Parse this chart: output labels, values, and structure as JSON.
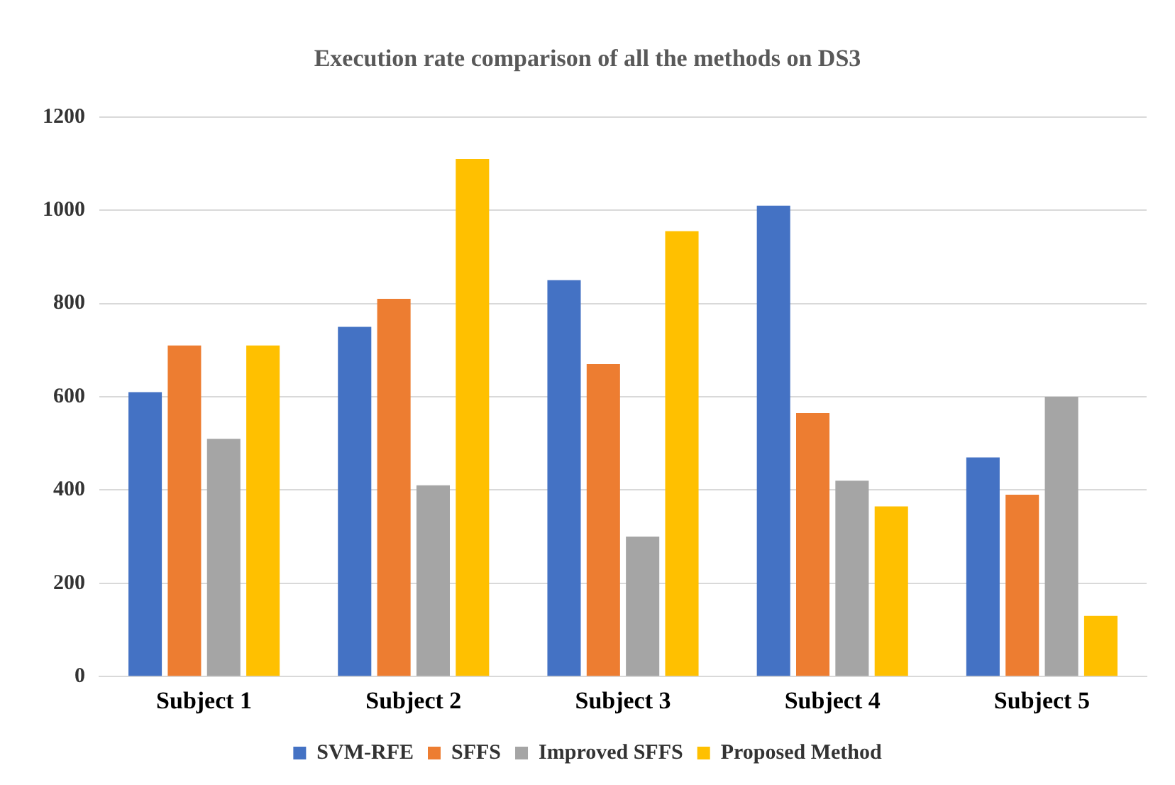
{
  "chart_data": {
    "type": "bar",
    "title": "Execution rate comparison of all the methods on DS3",
    "categories": [
      "Subject 1",
      "Subject 2",
      "Subject 3",
      "Subject 4",
      "Subject 5"
    ],
    "series": [
      {
        "name": "SVM-RFE",
        "color": "#4472c4",
        "values": [
          610,
          750,
          850,
          1010,
          470
        ]
      },
      {
        "name": "SFFS",
        "color": "#ed7d31",
        "values": [
          710,
          810,
          670,
          565,
          390
        ]
      },
      {
        "name": "Improved SFFS",
        "color": "#a5a5a5",
        "values": [
          510,
          410,
          300,
          420,
          600
        ]
      },
      {
        "name": "Proposed Method",
        "color": "#ffc000",
        "values": [
          710,
          1110,
          955,
          365,
          130
        ]
      }
    ],
    "ylim": [
      0,
      1200
    ],
    "yticks": [
      0,
      200,
      400,
      600,
      800,
      1000,
      1200
    ],
    "grid": "y",
    "legend": "bottom"
  }
}
